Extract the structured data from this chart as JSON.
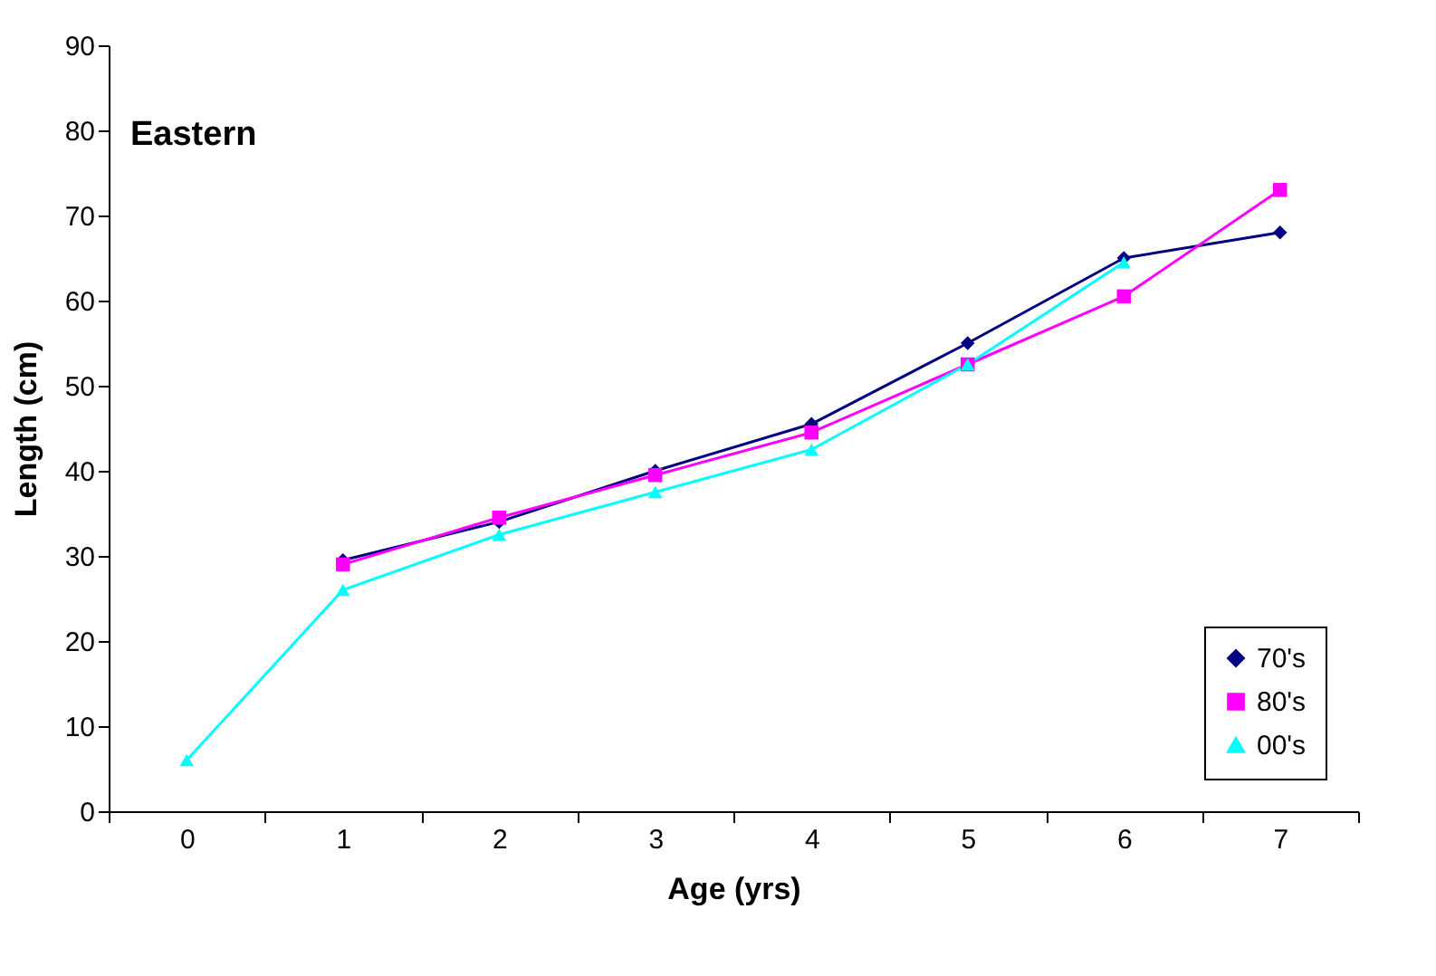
{
  "chart_data": {
    "type": "line",
    "xlabel": "Age (yrs)",
    "ylabel": "Length (cm)",
    "annotations": [
      "Eastern"
    ],
    "categories": [
      "0",
      "1",
      "2",
      "3",
      "4",
      "5",
      "6",
      "7"
    ],
    "ylim": [
      0,
      90
    ],
    "yticks": [
      0,
      10,
      20,
      30,
      40,
      50,
      60,
      70,
      80,
      90
    ],
    "grid": false,
    "line_style": "solid",
    "legend": "bottom right",
    "series": [
      {
        "name": "70's",
        "color": "#000080",
        "marker": "diamond",
        "values": [
          null,
          29.5,
          34,
          40,
          45.5,
          55,
          65,
          68
        ]
      },
      {
        "name": "80's",
        "color": "#ff00ff",
        "marker": "square",
        "values": [
          null,
          29,
          34.5,
          39.5,
          44.5,
          52.5,
          60.5,
          73
        ]
      },
      {
        "name": "00's",
        "color": "#00ffff",
        "marker": "triangle",
        "values": [
          6,
          26,
          32.5,
          37.5,
          42.5,
          52.5,
          64.5,
          null
        ]
      }
    ]
  }
}
